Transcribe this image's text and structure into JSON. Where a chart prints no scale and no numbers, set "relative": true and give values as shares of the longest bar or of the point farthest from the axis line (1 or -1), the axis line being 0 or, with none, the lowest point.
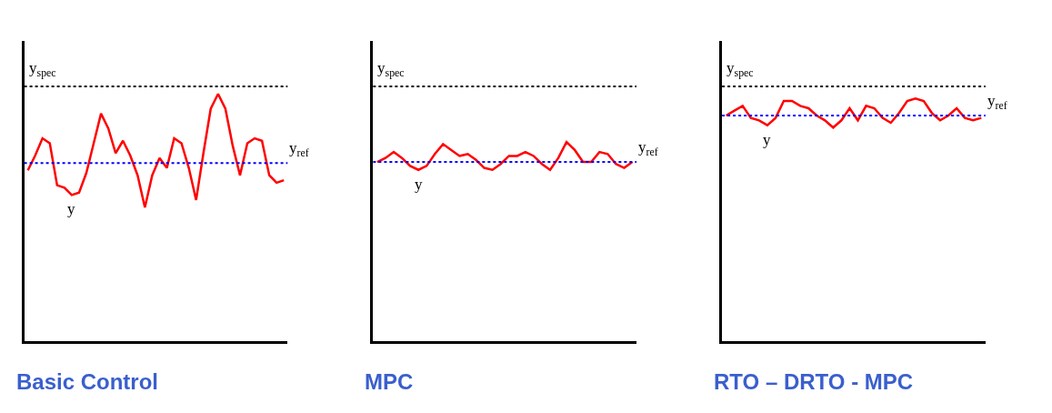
{
  "chart_data": [
    {
      "type": "line",
      "title": "Basic Control",
      "relative": true,
      "categories": [
        null,
        null,
        null,
        null,
        null,
        null,
        null,
        null,
        null,
        null,
        null,
        null,
        null,
        null,
        null,
        null,
        null,
        null,
        null,
        null,
        null,
        null,
        null,
        null,
        null,
        null,
        null,
        null,
        null,
        null,
        null,
        null,
        null,
        null,
        null,
        null
      ],
      "series": [
        {
          "color": "#ff0000",
          "values": [
            0.69,
            0.75,
            0.82,
            0.8,
            0.63,
            0.62,
            0.59,
            0.6,
            0.68,
            0.8,
            0.92,
            0.86,
            0.76,
            0.81,
            0.75,
            0.67,
            0.54,
            0.67,
            0.74,
            0.7,
            0.82,
            0.8,
            0.7,
            0.57,
            0.76,
            0.94,
            1.0,
            0.94,
            0.79,
            0.67,
            0.8,
            0.82,
            0.81,
            0.67,
            0.64,
            0.65
          ]
        }
      ],
      "ref_lines": [
        {
          "axis": "y",
          "value": 1.03,
          "label": "y$_{spec}$",
          "color": "#000000",
          "line_style": "dotted"
        },
        {
          "axis": "y",
          "value": 0.72,
          "label": "y$_{ref}$",
          "color": "#0000ff",
          "line_style": "dotted"
        }
      ],
      "annotations": [
        "y"
      ],
      "marker": "none",
      "line_style": "solid"
    },
    {
      "type": "line",
      "title": "MPC",
      "relative": true,
      "categories": [
        null,
        null,
        null,
        null,
        null,
        null,
        null,
        null,
        null,
        null,
        null,
        null,
        null,
        null,
        null,
        null,
        null,
        null,
        null,
        null,
        null,
        null,
        null,
        null,
        null,
        null,
        null,
        null,
        null,
        null,
        null,
        null
      ],
      "series": [
        {
          "color": "#ff0000",
          "values": [
            0.9,
            0.92,
            0.95,
            0.92,
            0.88,
            0.86,
            0.88,
            0.94,
            0.99,
            0.96,
            0.93,
            0.94,
            0.91,
            0.87,
            0.86,
            0.89,
            0.93,
            0.93,
            0.95,
            0.93,
            0.89,
            0.86,
            0.92,
            1.0,
            0.96,
            0.9,
            0.9,
            0.95,
            0.94,
            0.89,
            0.87,
            0.9
          ]
        }
      ],
      "ref_lines": [
        {
          "axis": "y",
          "value": 1.28,
          "label": "y$_{spec}$",
          "color": "#000000",
          "line_style": "dotted"
        },
        {
          "axis": "y",
          "value": 0.9,
          "label": "y$_{ref}$",
          "color": "#0000ff",
          "line_style": "dotted"
        }
      ],
      "annotations": [
        "y"
      ],
      "marker": "none",
      "line_style": "solid"
    },
    {
      "type": "line",
      "title": "RTO – DRTO - MPC",
      "relative": true,
      "categories": [
        null,
        null,
        null,
        null,
        null,
        null,
        null,
        null,
        null,
        null,
        null,
        null,
        null,
        null,
        null,
        null,
        null,
        null,
        null,
        null,
        null,
        null,
        null,
        null,
        null,
        null,
        null,
        null,
        null,
        null,
        null,
        null
      ],
      "series": [
        {
          "color": "#ff0000",
          "values": [
            0.93,
            0.95,
            0.97,
            0.92,
            0.91,
            0.89,
            0.92,
            0.99,
            0.99,
            0.97,
            0.96,
            0.93,
            0.91,
            0.88,
            0.91,
            0.96,
            0.91,
            0.97,
            0.96,
            0.92,
            0.9,
            0.94,
            0.99,
            1.0,
            0.99,
            0.94,
            0.91,
            0.93,
            0.96,
            0.92,
            0.91,
            0.92
          ]
        }
      ],
      "ref_lines": [
        {
          "axis": "y",
          "value": 1.05,
          "label": "y$_{spec}$",
          "color": "#000000",
          "line_style": "dotted"
        },
        {
          "axis": "y",
          "value": 0.93,
          "label": "y$_{ref}$",
          "color": "#0000ff",
          "line_style": "dotted"
        }
      ],
      "annotations": [
        "y"
      ],
      "marker": "none",
      "line_style": "solid"
    }
  ]
}
